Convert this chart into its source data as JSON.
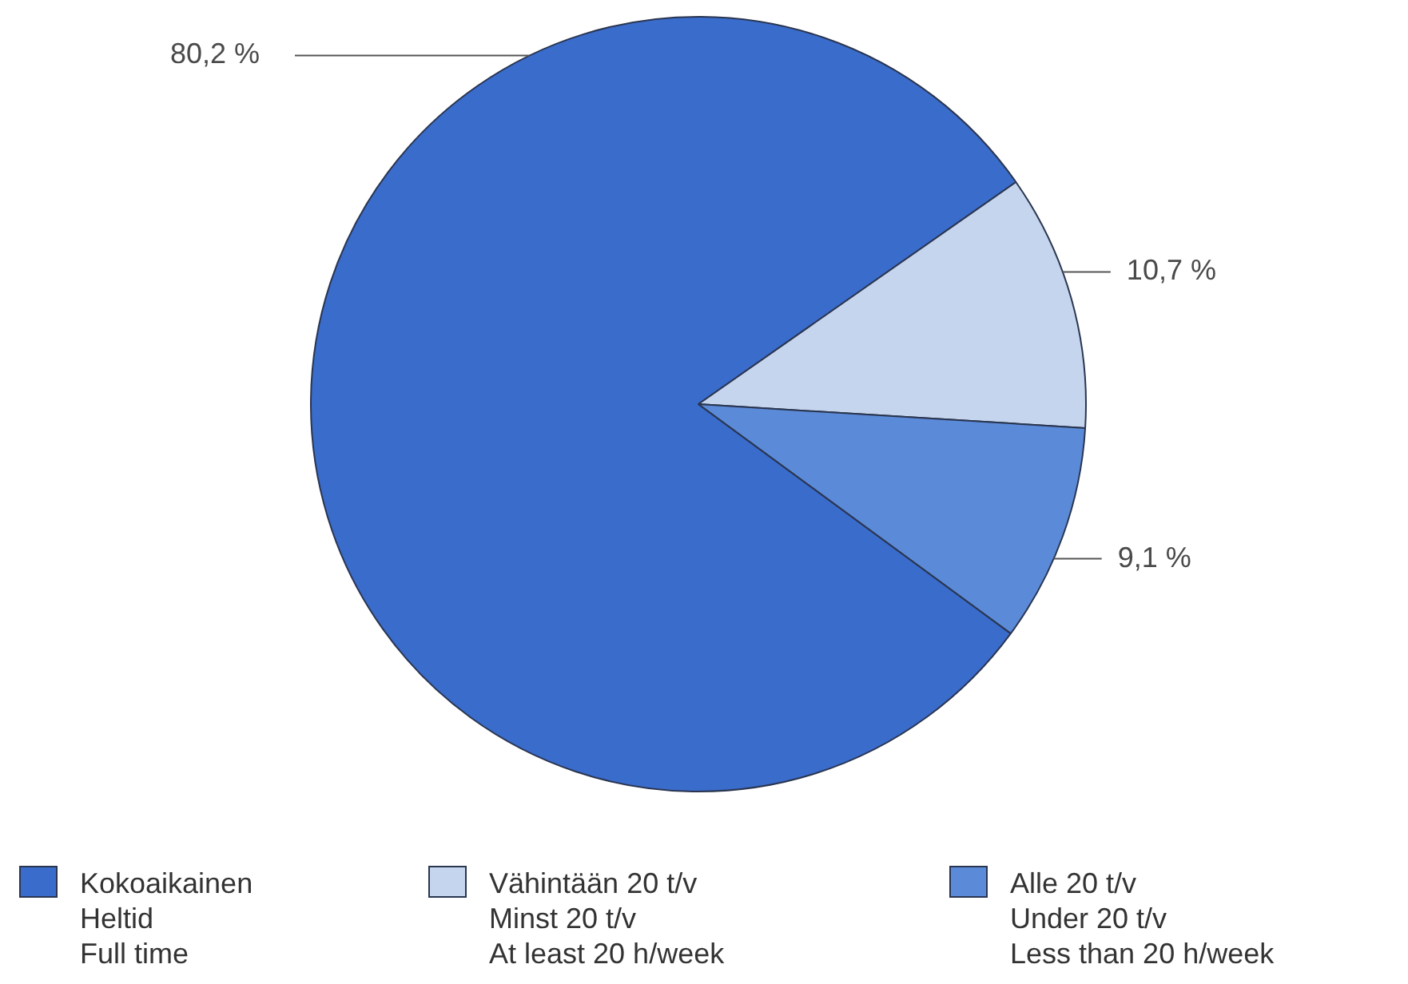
{
  "chart_data": {
    "type": "pie",
    "categories": [
      "Kokoaikainen\nHeltid\nFull time",
      "Vähintään 20 t/v\nMinst 20 t/v\nAt least 20 h/week",
      "Alle 20 t/v\nUnder 20 t/v\nLess than 20 h/week"
    ],
    "values": [
      80.2,
      10.7,
      9.1
    ],
    "colors": [
      "#3a6ccc",
      "#c5d5ee",
      "#5b8bd8"
    ],
    "value_labels": [
      "80,2 %",
      "10,7 %",
      "9,1 %"
    ],
    "legend": "bottom"
  }
}
